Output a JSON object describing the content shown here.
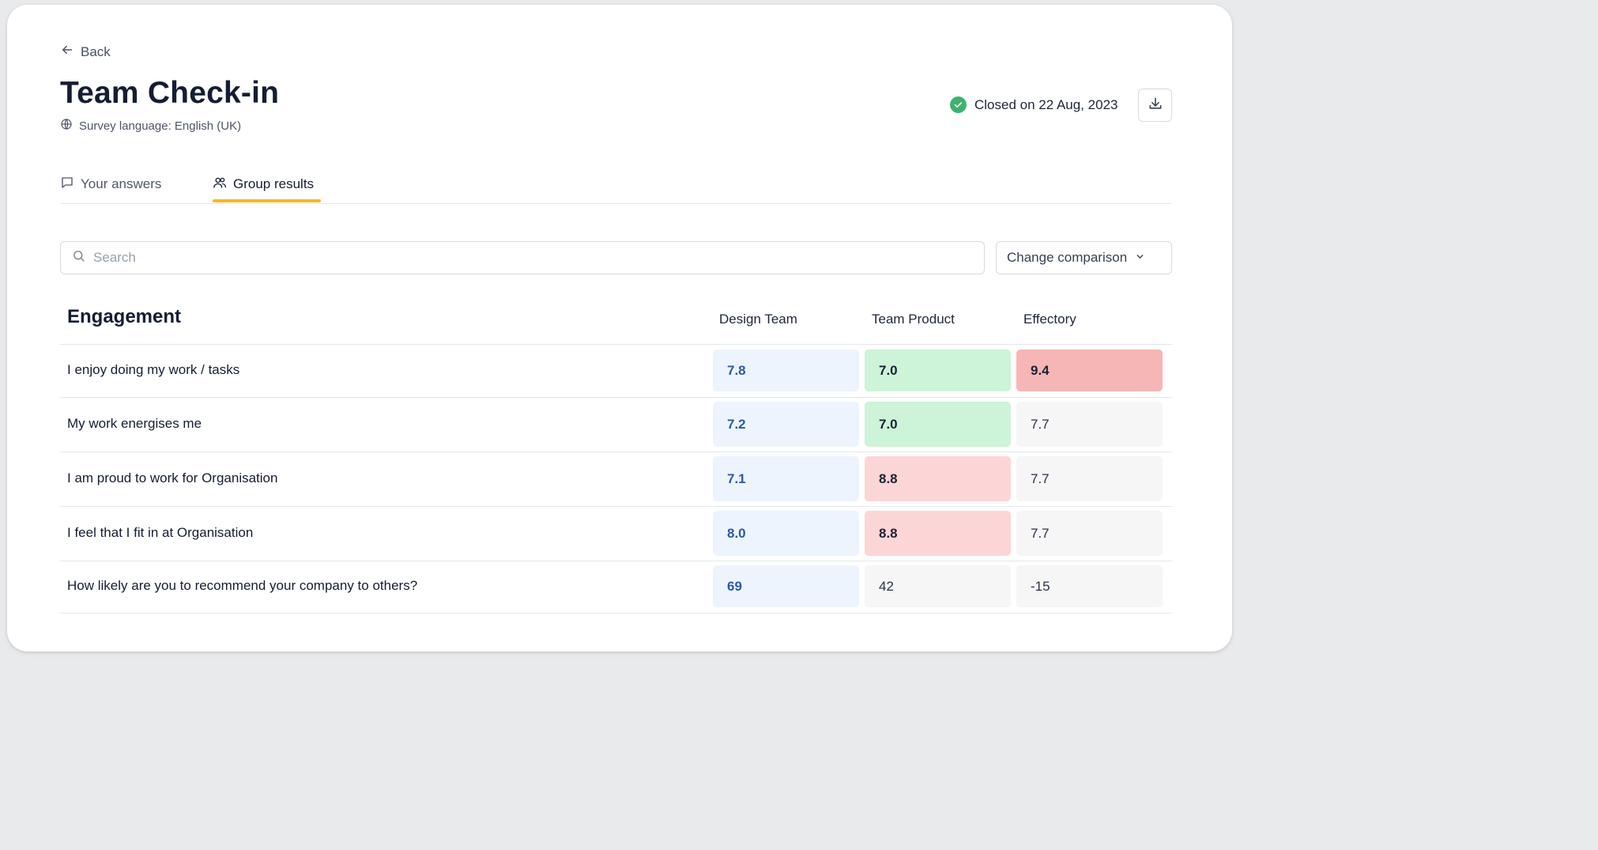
{
  "nav": {
    "back_label": "Back"
  },
  "header": {
    "title": "Team Check-in",
    "language": "Survey language: English (UK)",
    "status": "Closed on 22 Aug, 2023"
  },
  "tabs": [
    {
      "label": "Your answers",
      "active": false
    },
    {
      "label": "Group results",
      "active": true
    }
  ],
  "search": {
    "placeholder": "Search",
    "value": ""
  },
  "comparison": {
    "label": "Change comparison"
  },
  "table": {
    "section_title": "Engagement",
    "columns": [
      "Design Team",
      "Team Product",
      "Effectory"
    ],
    "rows": [
      {
        "question": "I enjoy doing my work / tasks",
        "values": [
          "7.8",
          "7.0",
          "9.4"
        ],
        "tones": [
          "blue",
          "green",
          "red-strong"
        ]
      },
      {
        "question": "My work energises me",
        "values": [
          "7.2",
          "7.0",
          "7.7"
        ],
        "tones": [
          "blue",
          "green",
          "neutral"
        ]
      },
      {
        "question": "I am proud to work for Organisation",
        "values": [
          "7.1",
          "8.8",
          "7.7"
        ],
        "tones": [
          "blue",
          "red",
          "neutral"
        ]
      },
      {
        "question": "I feel that I fit in at Organisation",
        "values": [
          "8.0",
          "8.8",
          "7.7"
        ],
        "tones": [
          "blue",
          "red",
          "neutral"
        ]
      },
      {
        "question": "How likely are you to recommend your company to others?",
        "values": [
          "69",
          "42",
          "-15"
        ],
        "tones": [
          "blue",
          "neutral",
          "neutral"
        ]
      }
    ]
  },
  "colors": {
    "accent_tab": "#f4b91f",
    "status_ok": "#3db36d",
    "blue_bg": "#eef4fd",
    "blue_text": "#2a5aa8",
    "green_bg": "#cdf3d8",
    "green_text": "#1b2238",
    "red_bg": "#fcd6d6",
    "red_text": "#1b2238",
    "red_strong_bg": "#f7b6b6",
    "red_strong_text": "#1b2238",
    "neutral_bg": "#f6f6f7",
    "neutral_text": "#2b3245"
  }
}
